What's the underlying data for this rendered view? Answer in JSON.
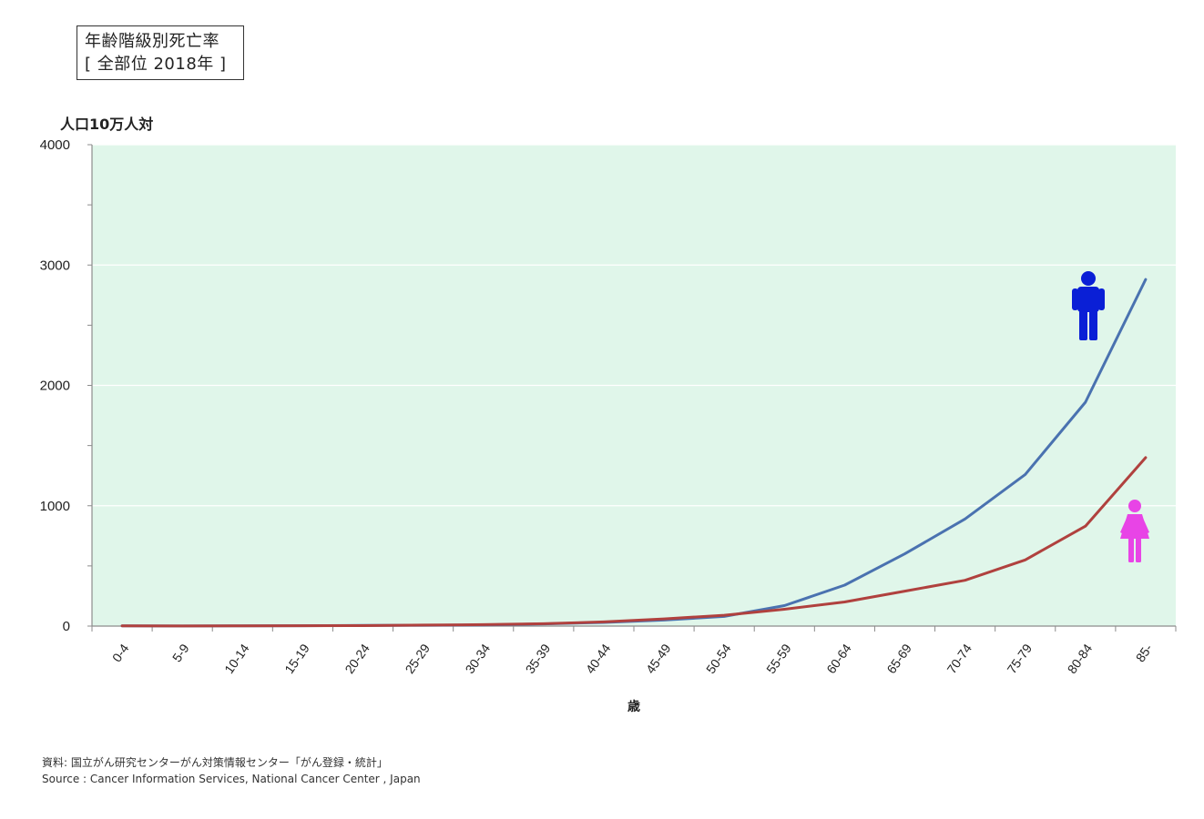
{
  "title": {
    "line1": "年齢階級別死亡率",
    "line2": "[ 全部位 2018年 ]"
  },
  "y_unit_label": "人口10万人対",
  "xlabel": "歳",
  "source": {
    "line1": "資料: 国立がん研究センターがん対策情報センター「がん登録・統計」",
    "line2": "Source : Cancer Information Services, National Cancer Center , Japan"
  },
  "icons": {
    "male": "male-figure-icon",
    "female": "female-figure-icon"
  },
  "colors": {
    "plot_background": "#e0f6ea",
    "male": "#4a72b0",
    "female": "#b0413e",
    "male_icon": "#0a1fd6",
    "female_icon": "#e844e6"
  },
  "chart_data": {
    "type": "line",
    "categories": [
      "0-4",
      "5-9",
      "10-14",
      "15-19",
      "20-24",
      "25-29",
      "30-34",
      "35-39",
      "40-44",
      "45-49",
      "50-54",
      "55-59",
      "60-64",
      "65-69",
      "70-74",
      "75-79",
      "80-84",
      "85-"
    ],
    "ylim": [
      0,
      4000
    ],
    "yticks": [
      "0",
      "1000",
      "2000",
      "3000",
      "4000"
    ],
    "grid": true,
    "series": [
      {
        "values": [
          2,
          1,
          2,
          3,
          5,
          7,
          10,
          18,
          30,
          50,
          80,
          170,
          340,
          600,
          890,
          1260,
          1860,
          2880
        ]
      },
      {
        "values": [
          2,
          1,
          2,
          3,
          4,
          8,
          12,
          20,
          35,
          60,
          90,
          140,
          200,
          290,
          380,
          550,
          830,
          1400
        ]
      }
    ]
  }
}
